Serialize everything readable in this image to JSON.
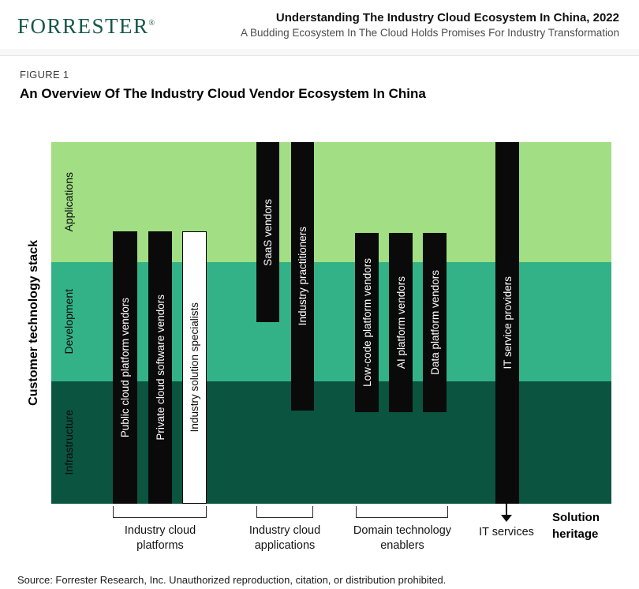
{
  "header": {
    "logo_text": "FORRESTER",
    "logo_reg": "®",
    "report_title": "Understanding The Industry Cloud Ecosystem In China, 2022",
    "report_subtitle": "A Budding Ecosystem In The Cloud Holds Promises For Industry Transformation"
  },
  "figure": {
    "label": "FIGURE 1",
    "title": "An Overview Of The Industry Cloud Vendor Ecosystem In China"
  },
  "diagram": {
    "y_axis_label": "Customer technology stack",
    "bands": [
      {
        "label": "Applications",
        "color": "#a2de83"
      },
      {
        "label": "Development",
        "color": "#34b287"
      },
      {
        "label": "Infrastructure",
        "color": "#0a5440"
      }
    ],
    "bars": [
      {
        "label": "Public cloud platform vendors",
        "style": "solid",
        "spans": [
          "Applications",
          "Development",
          "Infrastructure"
        ]
      },
      {
        "label": "Private cloud software vendors",
        "style": "solid",
        "spans": [
          "Applications",
          "Development",
          "Infrastructure"
        ]
      },
      {
        "label": "Industry solution specialists",
        "style": "outline",
        "spans": [
          "Applications",
          "Development",
          "Infrastructure"
        ]
      },
      {
        "label": "SaaS vendors",
        "style": "solid",
        "spans": [
          "Applications",
          "Development"
        ]
      },
      {
        "label": "Industry practitioners",
        "style": "solid",
        "spans": [
          "Applications",
          "Development",
          "Infrastructure"
        ]
      },
      {
        "label": "Low-code platform vendors",
        "style": "solid",
        "spans": [
          "Applications",
          "Development",
          "Infrastructure"
        ]
      },
      {
        "label": "AI platform vendors",
        "style": "solid",
        "spans": [
          "Applications",
          "Development",
          "Infrastructure"
        ]
      },
      {
        "label": "Data platform vendors",
        "style": "solid",
        "spans": [
          "Applications",
          "Development",
          "Infrastructure"
        ]
      },
      {
        "label": "IT service providers",
        "style": "solid",
        "spans": [
          "Applications",
          "Development",
          "Infrastructure"
        ]
      }
    ],
    "groups": [
      {
        "label": "Industry cloud platforms"
      },
      {
        "label": "Industry cloud applications"
      },
      {
        "label": "Domain technology enablers"
      },
      {
        "label": "IT services"
      }
    ],
    "solution_heritage_label": "Solution heritage"
  },
  "source_line": "Source: Forrester Research, Inc. Unauthorized reproduction, citation, or distribution prohibited."
}
